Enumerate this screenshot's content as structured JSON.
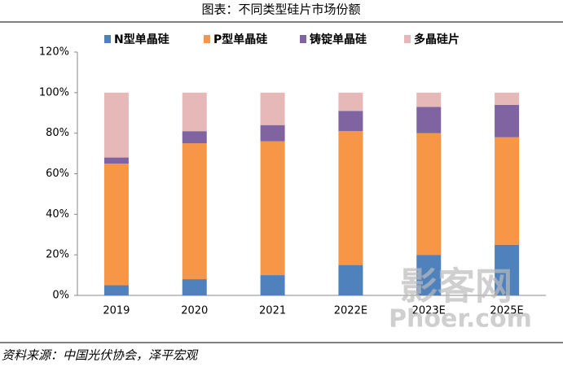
{
  "chart_data": {
    "type": "stacked_bar",
    "title": "图表：不同类型硅片市场份额",
    "categories": [
      "2019",
      "2020",
      "2021",
      "2022E",
      "2023E",
      "2025E"
    ],
    "series": [
      {
        "name": "N型单晶硅",
        "color": "#4f81bd",
        "values": [
          5,
          8,
          10,
          15,
          20,
          25
        ]
      },
      {
        "name": "P型单晶硅",
        "color": "#f79646",
        "values": [
          60,
          67,
          66,
          66,
          60,
          53
        ]
      },
      {
        "name": "铸锭单晶硅",
        "color": "#8064a2",
        "values": [
          3,
          6,
          8,
          10,
          13,
          16
        ]
      },
      {
        "name": "多晶硅片",
        "color": "#e6b9b8",
        "values": [
          32,
          19,
          16,
          9,
          7,
          6
        ]
      }
    ],
    "ylim": [
      0,
      120
    ],
    "yticks": [
      {
        "value": 0,
        "label": "0%"
      },
      {
        "value": 20,
        "label": "20%"
      },
      {
        "value": 40,
        "label": "40%"
      },
      {
        "value": 60,
        "label": "60%"
      },
      {
        "value": 80,
        "label": "80%"
      },
      {
        "value": 100,
        "label": "100%"
      },
      {
        "value": 120,
        "label": "120%"
      }
    ],
    "source": "资料来源：中国光伏协会，泽平宏观",
    "watermark": [
      "影客网",
      "Phoer.com"
    ]
  }
}
